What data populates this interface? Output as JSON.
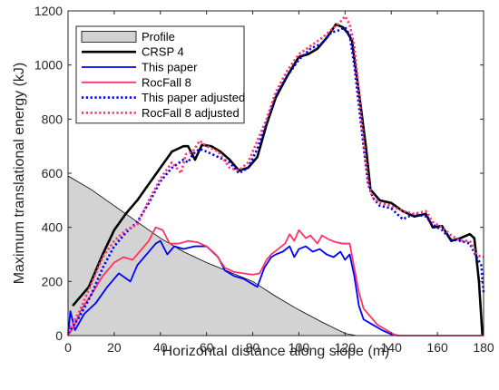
{
  "chart_data": {
    "type": "line",
    "xlabel": "Horizontal distance along slope (m)",
    "ylabel": "Maximum translational energy (kJ)",
    "xlim": [
      0,
      180
    ],
    "ylim": [
      0,
      1200
    ],
    "xticks": [
      0,
      20,
      40,
      60,
      80,
      100,
      120,
      140,
      160,
      180
    ],
    "yticks": [
      0,
      200,
      400,
      600,
      800,
      1000,
      1200
    ],
    "grid": false,
    "legend_position": "top-left",
    "profile": {
      "name": "Profile",
      "color": "#d3d3d3",
      "x": [
        0,
        10,
        20,
        30,
        40,
        50,
        60,
        70,
        80,
        90,
        100,
        110,
        120,
        125,
        180
      ],
      "y": [
        590,
        540,
        480,
        420,
        360,
        310,
        270,
        235,
        200,
        145,
        95,
        50,
        8,
        0,
        0
      ]
    },
    "series": [
      {
        "name": "CRSP 4",
        "color": "#000000",
        "style": "solid",
        "width": 2.6,
        "x": [
          2,
          9,
          15,
          20,
          25,
          30,
          35,
          40,
          45,
          50,
          52,
          55,
          58,
          62,
          66,
          70,
          74,
          78,
          82,
          86,
          90,
          95,
          100,
          104,
          108,
          112,
          116,
          119,
          121,
          123,
          126,
          129,
          131,
          135,
          140,
          145,
          150,
          155,
          158,
          162,
          166,
          170,
          174,
          176,
          178,
          179.5
        ],
        "y": [
          110,
          180,
          300,
          390,
          450,
          500,
          560,
          620,
          680,
          700,
          700,
          650,
          705,
          700,
          680,
          650,
          610,
          620,
          660,
          780,
          880,
          960,
          1030,
          1040,
          1060,
          1100,
          1150,
          1140,
          1120,
          1090,
          900,
          700,
          540,
          500,
          490,
          460,
          440,
          450,
          400,
          405,
          350,
          360,
          375,
          360,
          200,
          0
        ]
      },
      {
        "name": "This paper",
        "color": "#0000ff",
        "style": "solid",
        "width": 1.8,
        "x": [
          0,
          1,
          3,
          7,
          12,
          17,
          22,
          27,
          30,
          34,
          38,
          40,
          43,
          46,
          50,
          55,
          60,
          65,
          68,
          72,
          76,
          80,
          82,
          85,
          88,
          90,
          93,
          96,
          98,
          100,
          103,
          106,
          109,
          112,
          115,
          118,
          120,
          122,
          124,
          126,
          128,
          132,
          136,
          140,
          143
        ],
        "y": [
          0,
          90,
          20,
          80,
          120,
          180,
          230,
          200,
          260,
          300,
          340,
          350,
          300,
          330,
          320,
          330,
          330,
          290,
          240,
          220,
          210,
          190,
          180,
          250,
          290,
          300,
          310,
          330,
          290,
          320,
          330,
          310,
          320,
          300,
          290,
          310,
          280,
          300,
          220,
          110,
          60,
          40,
          20,
          5,
          0
        ]
      },
      {
        "name": "RocFall 8",
        "color": "#ff3366",
        "style": "solid",
        "width": 1.8,
        "x": [
          0,
          3,
          6,
          10,
          15,
          20,
          24,
          28,
          31,
          35,
          38,
          41,
          44,
          48,
          52,
          56,
          60,
          64,
          68,
          72,
          76,
          80,
          83,
          86,
          88,
          91,
          94,
          96,
          98,
          100,
          103,
          105,
          108,
          110,
          113,
          116,
          119,
          122,
          124,
          126,
          128,
          131,
          134,
          138,
          141,
          143,
          145,
          175,
          180
        ],
        "y": [
          0,
          40,
          100,
          150,
          220,
          270,
          290,
          280,
          310,
          350,
          400,
          390,
          340,
          340,
          350,
          345,
          330,
          300,
          250,
          235,
          230,
          225,
          230,
          280,
          300,
          320,
          340,
          375,
          350,
          390,
          360,
          370,
          340,
          370,
          355,
          345,
          340,
          340,
          250,
          160,
          100,
          70,
          40,
          20,
          5,
          0,
          0,
          0,
          0
        ]
      },
      {
        "name": "This paper adjusted",
        "color": "#0000ff",
        "style": "dotted",
        "width": 2.6,
        "x": [
          0,
          5,
          10,
          15,
          20,
          25,
          30,
          35,
          40,
          45,
          50,
          52,
          54,
          57,
          60,
          65,
          70,
          74,
          78,
          82,
          86,
          90,
          95,
          100,
          105,
          110,
          114,
          118,
          120,
          122,
          124,
          126,
          128,
          130,
          132,
          135,
          140,
          145,
          150,
          155,
          158,
          162,
          166,
          170,
          174,
          177,
          179,
          180
        ],
        "y": [
          10,
          70,
          150,
          250,
          330,
          380,
          420,
          490,
          570,
          620,
          650,
          640,
          670,
          690,
          680,
          660,
          640,
          600,
          620,
          690,
          790,
          890,
          960,
          1020,
          1060,
          1080,
          1120,
          1130,
          1140,
          1110,
          1000,
          850,
          700,
          560,
          510,
          480,
          470,
          430,
          450,
          440,
          410,
          390,
          355,
          350,
          340,
          290,
          260,
          160
        ]
      },
      {
        "name": "RocFall 8 adjusted",
        "color": "#ff3366",
        "style": "dotted",
        "width": 2.6,
        "x": [
          0,
          5,
          10,
          15,
          20,
          25,
          30,
          35,
          40,
          45,
          49,
          51,
          54,
          57,
          60,
          65,
          70,
          74,
          78,
          82,
          86,
          90,
          95,
          100,
          105,
          110,
          114,
          118,
          120,
          122,
          124,
          126,
          128,
          130,
          132,
          135,
          140,
          145,
          150,
          155,
          158,
          162,
          166,
          170,
          174,
          177,
          179,
          180
        ],
        "y": [
          15,
          90,
          190,
          290,
          350,
          390,
          410,
          500,
          580,
          640,
          600,
          670,
          680,
          720,
          700,
          680,
          620,
          610,
          640,
          720,
          800,
          900,
          980,
          1040,
          1070,
          1100,
          1130,
          1160,
          1180,
          1150,
          1070,
          900,
          720,
          570,
          510,
          490,
          480,
          460,
          450,
          460,
          420,
          400,
          370,
          350,
          350,
          300,
          290,
          290
        ]
      }
    ]
  }
}
